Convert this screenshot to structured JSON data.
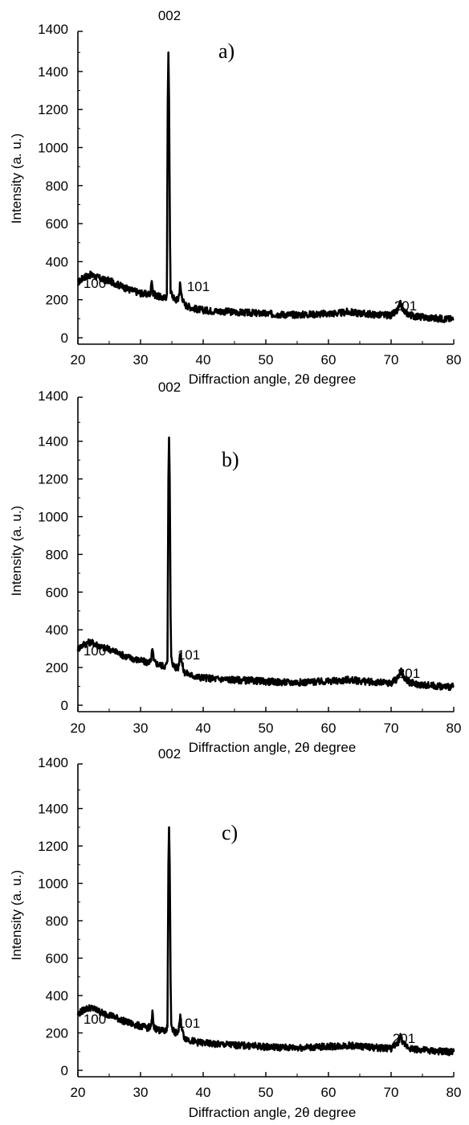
{
  "chart_data": [
    {
      "type": "line",
      "panel_label": "a)",
      "xlabel": "Diffraction angle, 2θ degree",
      "ylabel": "Intensity (a. u.)",
      "xlim": [
        20,
        80
      ],
      "ylim": [
        0,
        1600
      ],
      "y_tick_labels": [
        "0",
        "200",
        "400",
        "600",
        "800",
        "1000",
        "1200",
        "1400",
        "1400"
      ],
      "x_ticks": [
        20,
        30,
        40,
        50,
        60,
        70,
        80
      ],
      "grid": false,
      "annotations": [
        {
          "text": "100",
          "x": 31.8,
          "y": 300
        },
        {
          "text": "002",
          "x": 34.4,
          "y": 1520
        },
        {
          "text": "101",
          "x": 36.3,
          "y": 290
        },
        {
          "text": "201",
          "x": 71.6,
          "y": 200
        }
      ],
      "series": [
        {
          "color": "#000000",
          "points": [
            [
              20,
              290
            ],
            [
              21,
              320
            ],
            [
              22,
              330
            ],
            [
              23,
              320
            ],
            [
              24,
              305
            ],
            [
              25,
              300
            ],
            [
              26,
              285
            ],
            [
              27,
              270
            ],
            [
              28,
              255
            ],
            [
              29,
              245
            ],
            [
              30,
              235
            ],
            [
              31,
              228
            ],
            [
              31.6,
              232
            ],
            [
              31.8,
              315
            ],
            [
              32.0,
              232
            ],
            [
              32.5,
              222
            ],
            [
              33,
              215
            ],
            [
              33.5,
              210
            ],
            [
              34,
              208
            ],
            [
              34.2,
              230
            ],
            [
              34.35,
              1250
            ],
            [
              34.45,
              1500
            ],
            [
              34.55,
              1250
            ],
            [
              34.7,
              500
            ],
            [
              34.8,
              250
            ],
            [
              35,
              225
            ],
            [
              35.5,
              200
            ],
            [
              36,
              200
            ],
            [
              36.2,
              240
            ],
            [
              36.3,
              282
            ],
            [
              36.5,
              235
            ],
            [
              36.8,
              195
            ],
            [
              37,
              175
            ],
            [
              38,
              160
            ],
            [
              39,
              150
            ],
            [
              40,
              145
            ],
            [
              42,
              140
            ],
            [
              44,
              137
            ],
            [
              46,
              133
            ],
            [
              48,
              130
            ],
            [
              50,
              126
            ],
            [
              52,
              123
            ],
            [
              54,
              121
            ],
            [
              56,
              122
            ],
            [
              58,
              124
            ],
            [
              60,
              127
            ],
            [
              62,
              130
            ],
            [
              63,
              136
            ],
            [
              64,
              132
            ],
            [
              66,
              126
            ],
            [
              68,
              120
            ],
            [
              70,
              118
            ],
            [
              71,
              140
            ],
            [
              71.5,
              180
            ],
            [
              72,
              140
            ],
            [
              73,
              120
            ],
            [
              74,
              112
            ],
            [
              76,
              105
            ],
            [
              78,
              100
            ],
            [
              80,
              98
            ]
          ]
        }
      ]
    },
    {
      "type": "line",
      "panel_label": "b)",
      "xlabel": "Diffraction angle, 2θ degree",
      "ylabel": "Intensity (a. u.)",
      "xlim": [
        20,
        80
      ],
      "ylim": [
        0,
        1400
      ],
      "y_tick_labels": [
        "0",
        "200",
        "400",
        "600",
        "800",
        "1000",
        "1200",
        "1400",
        "1400"
      ],
      "x_ticks": [
        20,
        30,
        40,
        50,
        60,
        70,
        80
      ],
      "grid": false,
      "annotations": [
        {
          "text": "100",
          "x": 31.4,
          "y": 300
        },
        {
          "text": "002",
          "x": 34.8,
          "y": 1500
        },
        {
          "text": "101",
          "x": 37.2,
          "y": 290
        },
        {
          "text": "201",
          "x": 71.8,
          "y": 200
        }
      ],
      "series": [
        {
          "color": "#000000",
          "points": [
            [
              20,
              300
            ],
            [
              21,
              325
            ],
            [
              22,
              335
            ],
            [
              23,
              322
            ],
            [
              24,
              305
            ],
            [
              25,
              298
            ],
            [
              26,
              283
            ],
            [
              27,
              268
            ],
            [
              28,
              255
            ],
            [
              29,
              245
            ],
            [
              30,
              236
            ],
            [
              31,
              228
            ],
            [
              31.7,
              232
            ],
            [
              31.9,
              312
            ],
            [
              32.1,
              232
            ],
            [
              32.5,
              222
            ],
            [
              33,
              215
            ],
            [
              33.5,
              210
            ],
            [
              34,
              208
            ],
            [
              34.3,
              232
            ],
            [
              34.45,
              1200
            ],
            [
              34.55,
              1420
            ],
            [
              34.65,
              1200
            ],
            [
              34.8,
              480
            ],
            [
              34.9,
              250
            ],
            [
              35.1,
              225
            ],
            [
              35.5,
              200
            ],
            [
              36,
              200
            ],
            [
              36.2,
              240
            ],
            [
              36.35,
              285
            ],
            [
              36.55,
              235
            ],
            [
              36.8,
              195
            ],
            [
              37,
              175
            ],
            [
              38,
              160
            ],
            [
              39,
              150
            ],
            [
              40,
              146
            ],
            [
              42,
              140
            ],
            [
              44,
              137
            ],
            [
              46,
              133
            ],
            [
              48,
              130
            ],
            [
              50,
              126
            ],
            [
              52,
              123
            ],
            [
              54,
              121
            ],
            [
              56,
              122
            ],
            [
              58,
              124
            ],
            [
              60,
              127
            ],
            [
              62,
              130
            ],
            [
              63,
              136
            ],
            [
              64,
              132
            ],
            [
              66,
              126
            ],
            [
              68,
              120
            ],
            [
              70,
              118
            ],
            [
              71,
              142
            ],
            [
              71.6,
              185
            ],
            [
              72.1,
              142
            ],
            [
              73,
              120
            ],
            [
              74,
              112
            ],
            [
              76,
              105
            ],
            [
              78,
              100
            ],
            [
              80,
              98
            ]
          ]
        }
      ]
    },
    {
      "type": "line",
      "panel_label": "c)",
      "xlabel": "Diffraction angle, 2θ degree",
      "ylabel": "Intensity (a. u.)",
      "xlim": [
        20,
        80
      ],
      "ylim": [
        0,
        1400
      ],
      "y_tick_labels": [
        "0",
        "200",
        "400",
        "600",
        "800",
        "1000",
        "1200",
        "1400",
        "1400"
      ],
      "x_ticks": [
        20,
        30,
        40,
        50,
        60,
        70,
        80
      ],
      "grid": false,
      "annotations": [
        {
          "text": "100",
          "x": 31.4,
          "y": 300
        },
        {
          "text": "002",
          "x": 34.8,
          "y": 1400
        },
        {
          "text": "101",
          "x": 37.2,
          "y": 290
        },
        {
          "text": "201",
          "x": 71.5,
          "y": 200
        }
      ],
      "series": [
        {
          "color": "#000000",
          "points": [
            [
              20,
              300
            ],
            [
              21,
              325
            ],
            [
              22,
              335
            ],
            [
              23,
              322
            ],
            [
              24,
              305
            ],
            [
              25,
              298
            ],
            [
              26,
              283
            ],
            [
              27,
              268
            ],
            [
              28,
              255
            ],
            [
              29,
              245
            ],
            [
              30,
              236
            ],
            [
              31,
              228
            ],
            [
              31.7,
              232
            ],
            [
              31.9,
              310
            ],
            [
              32.1,
              232
            ],
            [
              32.5,
              222
            ],
            [
              33,
              215
            ],
            [
              33.5,
              210
            ],
            [
              34,
              208
            ],
            [
              34.3,
              232
            ],
            [
              34.45,
              1100
            ],
            [
              34.55,
              1300
            ],
            [
              34.65,
              1100
            ],
            [
              34.8,
              480
            ],
            [
              34.9,
              250
            ],
            [
              35.1,
              225
            ],
            [
              35.5,
              200
            ],
            [
              36,
              200
            ],
            [
              36.2,
              240
            ],
            [
              36.35,
              283
            ],
            [
              36.55,
              235
            ],
            [
              36.8,
              195
            ],
            [
              37,
              175
            ],
            [
              38,
              160
            ],
            [
              39,
              150
            ],
            [
              40,
              146
            ],
            [
              42,
              140
            ],
            [
              44,
              137
            ],
            [
              46,
              133
            ],
            [
              48,
              130
            ],
            [
              50,
              126
            ],
            [
              52,
              123
            ],
            [
              54,
              121
            ],
            [
              56,
              122
            ],
            [
              58,
              124
            ],
            [
              60,
              127
            ],
            [
              62,
              130
            ],
            [
              63,
              134
            ],
            [
              64,
              131
            ],
            [
              66,
              126
            ],
            [
              68,
              120
            ],
            [
              70,
              118
            ],
            [
              71,
              140
            ],
            [
              71.5,
              180
            ],
            [
              72,
              140
            ],
            [
              73,
              120
            ],
            [
              74,
              112
            ],
            [
              76,
              105
            ],
            [
              78,
              100
            ],
            [
              80,
              98
            ]
          ]
        }
      ]
    }
  ]
}
